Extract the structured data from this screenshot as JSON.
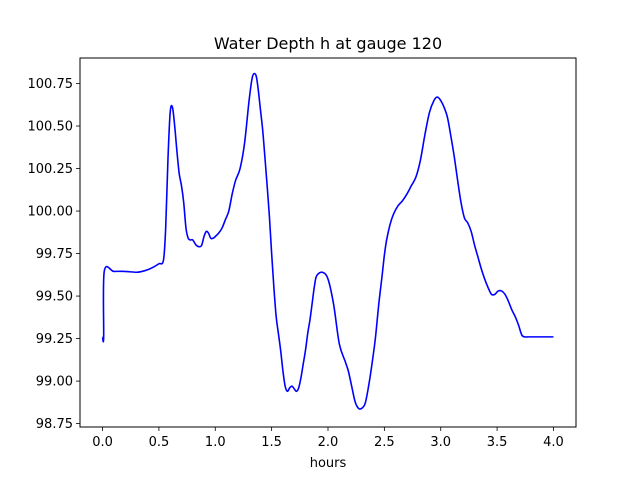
{
  "chart_data": {
    "type": "line",
    "title": "Water Depth h at gauge 120",
    "xlabel": "hours",
    "ylabel": "",
    "xlim": [
      -0.2,
      4.2
    ],
    "ylim": [
      98.73,
      100.9
    ],
    "xticks": [
      0.0,
      0.5,
      1.0,
      1.5,
      2.0,
      2.5,
      3.0,
      3.5,
      4.0
    ],
    "xtick_labels": [
      "0.0",
      "0.5",
      "1.0",
      "1.5",
      "2.0",
      "2.5",
      "3.0",
      "3.5",
      "4.0"
    ],
    "yticks": [
      98.75,
      99.0,
      99.25,
      99.5,
      99.75,
      100.0,
      100.25,
      100.5,
      100.75
    ],
    "ytick_labels": [
      "98.75",
      "99.00",
      "99.25",
      "99.50",
      "99.75",
      "100.00",
      "100.25",
      "100.50",
      "100.75"
    ],
    "grid": false,
    "legend": "none",
    "series": [
      {
        "color": "#0000ff",
        "x": [
          0.0,
          0.01,
          0.015,
          0.1,
          0.2,
          0.3,
          0.35,
          0.4,
          0.45,
          0.5,
          0.54,
          0.56,
          0.58,
          0.6,
          0.62,
          0.64,
          0.66,
          0.68,
          0.7,
          0.72,
          0.74,
          0.76,
          0.78,
          0.8,
          0.83,
          0.86,
          0.88,
          0.9,
          0.92,
          0.94,
          0.96,
          0.98,
          1.0,
          1.03,
          1.06,
          1.09,
          1.12,
          1.15,
          1.18,
          1.22,
          1.26,
          1.3,
          1.33,
          1.36,
          1.38,
          1.4,
          1.42,
          1.44,
          1.46,
          1.48,
          1.5,
          1.52,
          1.54,
          1.56,
          1.58,
          1.6,
          1.62,
          1.64,
          1.66,
          1.68,
          1.7,
          1.72,
          1.74,
          1.76,
          1.78,
          1.8,
          1.82,
          1.84,
          1.86,
          1.88,
          1.9,
          1.95,
          2.0,
          2.05,
          2.1,
          2.15,
          2.18,
          2.21,
          2.24,
          2.27,
          2.3,
          2.33,
          2.36,
          2.39,
          2.42,
          2.45,
          2.48,
          2.5,
          2.52,
          2.55,
          2.58,
          2.62,
          2.66,
          2.7,
          2.74,
          2.78,
          2.82,
          2.86,
          2.9,
          2.94,
          2.97,
          3.0,
          3.03,
          3.06,
          3.09,
          3.12,
          3.15,
          3.18,
          3.21,
          3.24,
          3.27,
          3.3,
          3.33,
          3.36,
          3.39,
          3.42,
          3.45,
          3.48,
          3.51,
          3.54,
          3.57,
          3.6,
          3.63,
          3.66,
          3.69,
          3.72,
          3.75,
          3.78,
          3.81,
          3.84,
          3.87,
          3.9,
          3.93,
          3.96,
          4.0
        ],
        "y": [
          99.26,
          99.26,
          99.645,
          99.645,
          99.645,
          99.64,
          99.645,
          99.655,
          99.67,
          99.69,
          99.71,
          99.9,
          100.3,
          100.58,
          100.61,
          100.5,
          100.35,
          100.22,
          100.15,
          100.05,
          99.9,
          99.84,
          99.83,
          99.83,
          99.8,
          99.79,
          99.8,
          99.85,
          99.88,
          99.87,
          99.84,
          99.84,
          99.85,
          99.87,
          99.9,
          99.95,
          100.0,
          100.1,
          100.18,
          100.25,
          100.4,
          100.65,
          100.79,
          100.8,
          100.72,
          100.6,
          100.48,
          100.32,
          100.15,
          99.97,
          99.75,
          99.55,
          99.38,
          99.28,
          99.18,
          99.06,
          98.97,
          98.94,
          98.96,
          98.97,
          98.955,
          98.94,
          98.96,
          99.02,
          99.1,
          99.18,
          99.28,
          99.36,
          99.46,
          99.56,
          99.62,
          99.64,
          99.6,
          99.45,
          99.22,
          99.12,
          99.06,
          98.97,
          98.88,
          98.84,
          98.84,
          98.87,
          98.97,
          99.1,
          99.25,
          99.45,
          99.62,
          99.74,
          99.83,
          99.92,
          99.98,
          100.03,
          100.06,
          100.1,
          100.15,
          100.2,
          100.3,
          100.45,
          100.58,
          100.65,
          100.67,
          100.65,
          100.61,
          100.55,
          100.44,
          100.32,
          100.18,
          100.05,
          99.96,
          99.93,
          99.88,
          99.8,
          99.73,
          99.66,
          99.6,
          99.55,
          99.51,
          99.51,
          99.53,
          99.53,
          99.51,
          99.47,
          99.42,
          99.38,
          99.33,
          99.27,
          99.26,
          99.26,
          99.26,
          99.26,
          99.26,
          99.26,
          99.26,
          99.26,
          99.26
        ]
      }
    ]
  }
}
